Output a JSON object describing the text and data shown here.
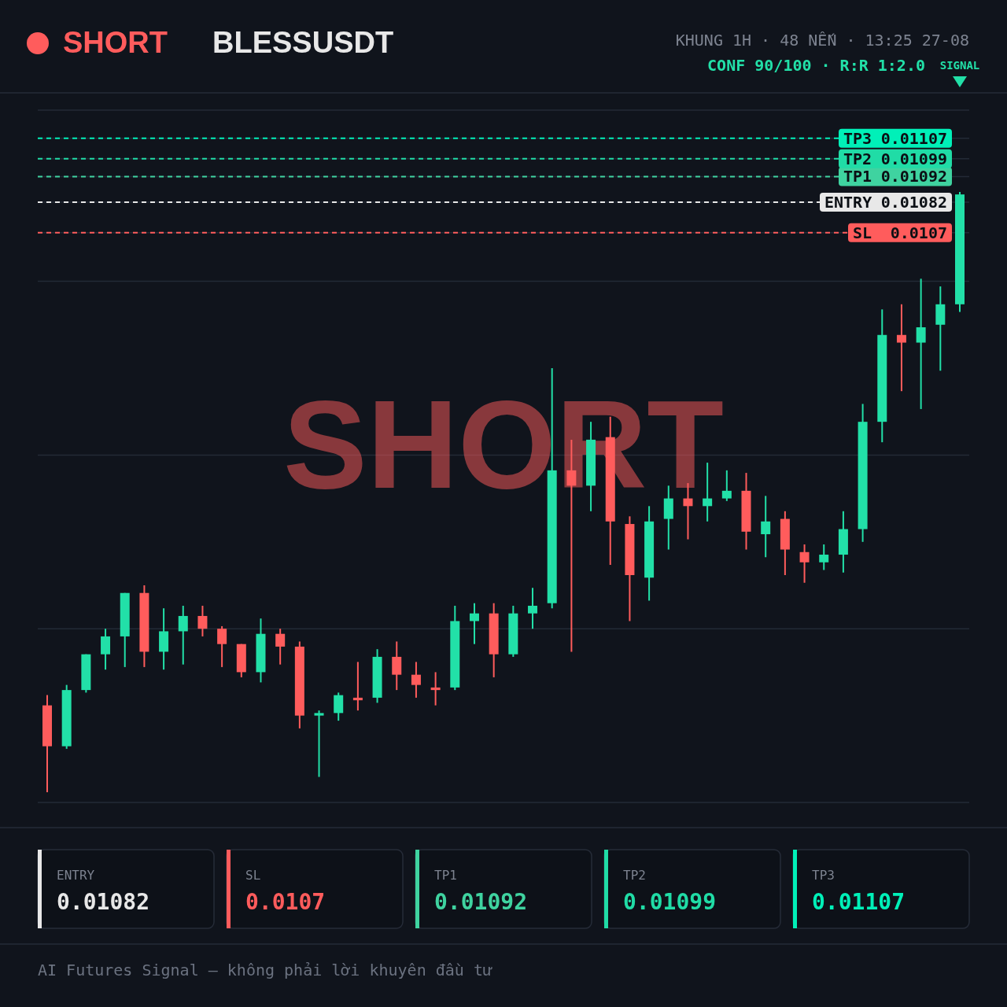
{
  "chart_data": {
    "type": "candlestick",
    "title": "SHORT",
    "subtitle": "BLESSUSDT",
    "annotations": [
      "KHUNG 1H · 48 NẾN · 13:25 27-08",
      "CONF 90/100 · R:R 1:2.0",
      "SIGNAL",
      "AI Futures Signal — không phải lời khuyên đầu tư",
      "ENTRY",
      "0.01082",
      "SL",
      "0.0107",
      "TP1",
      "0.01092",
      "TP2",
      "0.01099",
      "TP3",
      "0.01107"
    ],
    "categories": [
      null,
      null,
      null,
      null,
      null,
      null,
      null,
      null,
      null,
      null,
      null,
      null,
      null,
      null,
      null,
      null,
      null,
      null,
      null,
      null,
      null,
      null,
      null,
      null,
      null,
      null,
      null,
      null,
      null,
      null,
      null,
      null,
      null,
      null,
      null,
      null,
      null,
      null,
      null,
      null,
      null,
      null,
      null,
      null,
      null,
      null,
      null,
      null
    ],
    "ohlc": [
      [
        0.00885,
        0.00889,
        0.00851,
        0.00869
      ],
      [
        0.00869,
        0.00893,
        0.00868,
        0.00891
      ],
      [
        0.00891,
        0.00905,
        0.0089,
        0.00905
      ],
      [
        0.00905,
        0.00915,
        0.00899,
        0.00912
      ],
      [
        0.00912,
        0.00929,
        0.009,
        0.00929
      ],
      [
        0.00929,
        0.00932,
        0.009,
        0.00906
      ],
      [
        0.00906,
        0.00923,
        0.00899,
        0.00914
      ],
      [
        0.00914,
        0.00924,
        0.00901,
        0.0092
      ],
      [
        0.0092,
        0.00924,
        0.00912,
        0.00915
      ],
      [
        0.00915,
        0.00916,
        0.009,
        0.00909
      ],
      [
        0.00909,
        0.00909,
        0.00896,
        0.00898
      ],
      [
        0.00898,
        0.00919,
        0.00894,
        0.00913
      ],
      [
        0.00913,
        0.00915,
        0.00901,
        0.00908
      ],
      [
        0.00908,
        0.0091,
        0.00876,
        0.00881
      ],
      [
        0.00881,
        0.00883,
        0.00857,
        0.00882
      ],
      [
        0.00882,
        0.0089,
        0.00879,
        0.00889
      ],
      [
        0.00888,
        0.00902,
        0.00883,
        0.00887
      ],
      [
        0.00888,
        0.00907,
        0.00886,
        0.00904
      ],
      [
        0.00904,
        0.0091,
        0.00891,
        0.00897
      ],
      [
        0.00897,
        0.00902,
        0.00888,
        0.00893
      ],
      [
        0.00892,
        0.00898,
        0.00885,
        0.00891
      ],
      [
        0.00892,
        0.00924,
        0.00891,
        0.00918
      ],
      [
        0.00918,
        0.00925,
        0.00909,
        0.00921
      ],
      [
        0.00921,
        0.00925,
        0.00896,
        0.00905
      ],
      [
        0.00905,
        0.00924,
        0.00904,
        0.00921
      ],
      [
        0.00921,
        0.00931,
        0.00915,
        0.00924
      ],
      [
        0.00925,
        0.01017,
        0.00923,
        0.00977
      ],
      [
        0.00977,
        0.00989,
        0.00906,
        0.00971
      ],
      [
        0.00971,
        0.00996,
        0.00961,
        0.00989
      ],
      [
        0.0099,
        0.00998,
        0.0094,
        0.00957
      ],
      [
        0.00956,
        0.00959,
        0.00918,
        0.00936
      ],
      [
        0.00935,
        0.00963,
        0.00926,
        0.00957
      ],
      [
        0.00958,
        0.00971,
        0.00946,
        0.00966
      ],
      [
        0.00966,
        0.00972,
        0.0095,
        0.00963
      ],
      [
        0.00963,
        0.0098,
        0.00957,
        0.00966
      ],
      [
        0.00966,
        0.00977,
        0.00965,
        0.00969
      ],
      [
        0.00969,
        0.00976,
        0.00946,
        0.00953
      ],
      [
        0.00952,
        0.00967,
        0.00943,
        0.00957
      ],
      [
        0.00958,
        0.00961,
        0.00936,
        0.00946
      ],
      [
        0.00945,
        0.00948,
        0.00933,
        0.00941
      ],
      [
        0.00941,
        0.00948,
        0.00938,
        0.00944
      ],
      [
        0.00944,
        0.00961,
        0.00937,
        0.00954
      ],
      [
        0.00954,
        0.01003,
        0.00949,
        0.00996
      ],
      [
        0.00996,
        0.0104,
        0.00988,
        0.0103
      ],
      [
        0.0103,
        0.01042,
        0.01008,
        0.01027
      ],
      [
        0.01027,
        0.01052,
        0.01001,
        0.01033
      ],
      [
        0.01034,
        0.01049,
        0.01016,
        0.01042
      ],
      [
        0.01042,
        0.01086,
        0.01039,
        0.01085
      ]
    ],
    "ylim": [
      0.00847,
      0.01118
    ],
    "yticks": [
      {
        "value": 0.00847,
        "label": null
      },
      {
        "value": 0.00915,
        "label": null
      },
      {
        "value": 0.00983,
        "label": null
      },
      {
        "value": 0.01051,
        "label": null
      },
      {
        "value": 0.0107,
        "label": "0.0107"
      },
      {
        "value": 0.01082,
        "label": "0.01082"
      },
      {
        "value": 0.01092,
        "label": "0.01092"
      },
      {
        "value": 0.01099,
        "label": "0.01099"
      },
      {
        "value": 0.01107,
        "label": "0.01107"
      },
      {
        "value": 0.01118,
        "label": null
      }
    ],
    "grid": true,
    "tick_labels": "y",
    "ref_lines": [
      {
        "axis": "y",
        "value": 0.01082,
        "label": "ENTRY",
        "color": "#e8e8e8",
        "line_style": "dashed"
      },
      {
        "axis": "y",
        "value": 0.0107,
        "label": "SL",
        "color": "#ff5c5c",
        "line_style": "dashed"
      },
      {
        "axis": "y",
        "value": 0.01092,
        "label": "TP1",
        "color": "#3fd3a0",
        "line_style": "dashed"
      },
      {
        "axis": "y",
        "value": 0.01099,
        "label": "TP2",
        "color": "#20dca6",
        "line_style": "dashed"
      },
      {
        "axis": "y",
        "value": 0.01107,
        "label": "TP3",
        "color": "#00f0b8",
        "line_style": "dashed"
      }
    ]
  }
}
